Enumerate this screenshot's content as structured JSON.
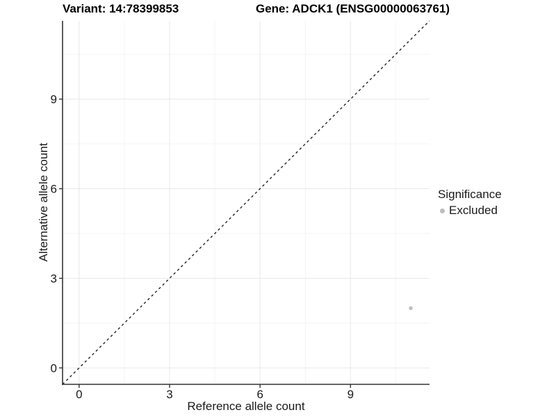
{
  "chart_data": {
    "type": "scatter",
    "title_left": "Variant: 14:78399853",
    "title_right": "Gene: ADCK1 (ENSG00000063761)",
    "xlabel": "Reference allele count",
    "ylabel": "Alternative allele count",
    "xlim": [
      -0.55,
      11.62
    ],
    "ylim": [
      -0.55,
      11.62
    ],
    "x_major_ticks": [
      0,
      3,
      6,
      9
    ],
    "y_major_ticks": [
      0,
      3,
      6,
      9
    ],
    "x_minor_ticks": [
      1.5,
      4.5,
      7.5,
      10.5
    ],
    "y_minor_ticks": [
      1.5,
      4.5,
      7.5,
      10.5
    ],
    "grid": "major and minor gridlines on white background",
    "reference_line": {
      "type": "identity y=x",
      "style": "dashed",
      "color": "#111111"
    },
    "series": [
      {
        "name": "Excluded",
        "color": "#bdbdbd",
        "points": [
          {
            "x": 11,
            "y": 2
          }
        ]
      }
    ],
    "legend": {
      "title": "Significance",
      "position": "right",
      "items": [
        {
          "label": "Excluded",
          "color": "#bdbdbd"
        }
      ]
    },
    "colors": {
      "grid_major": "#e8e8e8",
      "grid_minor": "#f4f4f4",
      "axis": "#333333",
      "background": "#ffffff"
    }
  }
}
